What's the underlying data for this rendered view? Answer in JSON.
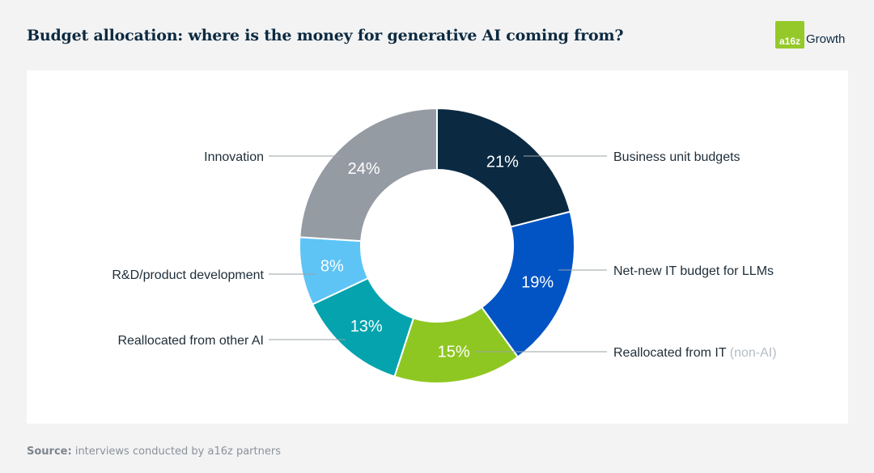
{
  "title": "Budget allocation: where is the money for generative AI coming from?",
  "logo": {
    "badge": "a16z",
    "word": "Growth"
  },
  "source": {
    "label": "Source:",
    "text": "interviews conducted by a16z partners"
  },
  "chart_data": {
    "type": "pie",
    "donut": true,
    "unit": "%",
    "slices": [
      {
        "label": "Business unit budgets",
        "note": "",
        "value": 21,
        "color": "#0b2a42"
      },
      {
        "label": "Net-new IT budget for LLMs",
        "note": "",
        "value": 19,
        "color": "#0254c4"
      },
      {
        "label": "Reallocated from IT",
        "note": "(non-AI)",
        "value": 15,
        "color": "#8fc722"
      },
      {
        "label": "Reallocated from other AI",
        "note": "",
        "value": 13,
        "color": "#04a3ae"
      },
      {
        "label": "R&D/product development",
        "note": "",
        "value": 8,
        "color": "#5ec4f6"
      },
      {
        "label": "Innovation",
        "note": "",
        "value": 24,
        "color": "#959ba3"
      }
    ]
  }
}
